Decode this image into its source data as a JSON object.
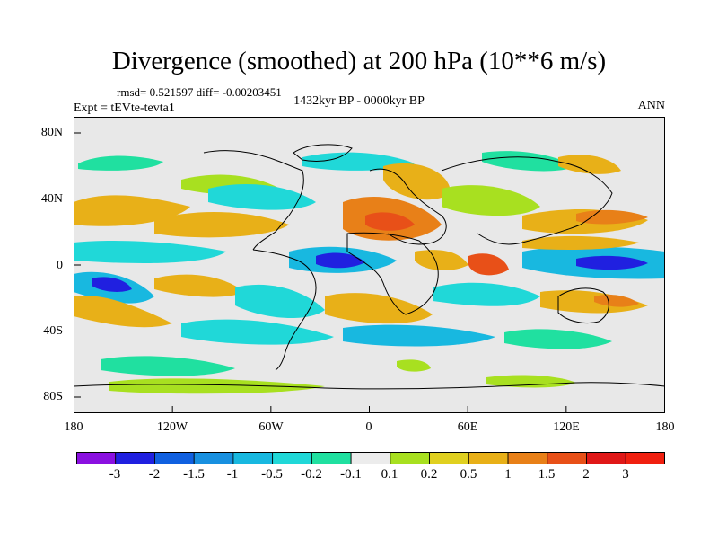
{
  "title": "Divergence (smoothed) at 200 hPa (10**6 m/s)",
  "stats_line": "rmsd= 0.521597 diff= -0.00203451",
  "experiment_line": "Expt = tEVte-tevta1",
  "period": "1432kyr BP - 0000kyr BP",
  "season": "ANN",
  "map": {
    "x_ticks": [
      "180",
      "120W",
      "60W",
      "0",
      "60E",
      "120E",
      "180"
    ],
    "y_ticks": [
      "80N",
      "40N",
      "0",
      "40S",
      "80S"
    ],
    "background_color": "#e8e8e8"
  },
  "colorbar": {
    "labels": [
      "-3",
      "-2",
      "-1.5",
      "-1",
      "-0.5",
      "-0.2",
      "-0.1",
      "0.1",
      "0.2",
      "0.5",
      "1",
      "1.5",
      "2",
      "3"
    ],
    "colors": [
      "#8a10e0",
      "#2020e0",
      "#1060e0",
      "#1890e0",
      "#18b8e0",
      "#20d8d8",
      "#20e0a0",
      "#ececec",
      "#a8e020",
      "#e0d020",
      "#e8b018",
      "#e88018",
      "#e85018",
      "#e01818",
      "#f02010"
    ]
  }
}
